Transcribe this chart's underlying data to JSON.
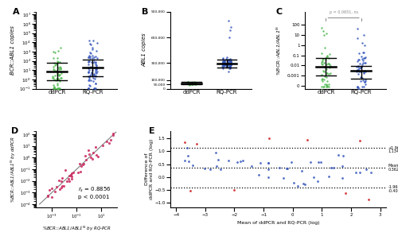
{
  "panel_A": {
    "ylabel": "BCR::ABL1 copies",
    "xticklabels": [
      "ddPCR",
      "RQ-PCR"
    ],
    "color_ddpcr": "#4db84d",
    "color_rqpcr": "#3355bb",
    "median_ddpcr": 7.0,
    "iqr_ddpcr_low": 0.8,
    "iqr_ddpcr_high": 60.0,
    "median_rqpcr": 18.0,
    "iqr_rqpcr_low": 2.0,
    "iqr_rqpcr_high": 130.0
  },
  "panel_B": {
    "ylabel": "ABL1 copies",
    "xticklabels": [
      "ddPCR",
      "RQ-PCR"
    ],
    "color_ddpcr": "#4db84d",
    "color_rqpcr": "#3355bb",
    "median_ddpcr": 62000,
    "iqr_ddpcr_low": 50000,
    "iqr_ddpcr_high": 78000,
    "median_rqpcr": 295000,
    "iqr_rqpcr_low": 245000,
    "iqr_rqpcr_high": 340000
  },
  "panel_C": {
    "ylabel": "%BCR::ABL1/ABL1IS",
    "xticklabels": [
      "ddPCR",
      "RQ-PCR"
    ],
    "color_ddpcr": "#4db84d",
    "color_rqpcr": "#3355bb",
    "median_ddpcr": 0.007,
    "iqr_ddpcr_low": 0.001,
    "iqr_ddpcr_high": 0.05,
    "median_rqpcr": 0.003,
    "iqr_rqpcr_low": 0.0005,
    "iqr_rqpcr_high": 0.008,
    "pval_text": "p = 0.0651, ns"
  },
  "panel_D": {
    "color": "#cc3366",
    "rs_text": "r_s = 0.8856",
    "p_text": "p < 0.0001",
    "xlabel": "%BCR::ABL1/ABL1IS by RQ-PCR",
    "ylabel": "%BCR::ABL1/ABL1IS by ddPCR"
  },
  "panel_E": {
    "xlabel": "Mean of ddPCR and RQ-PCR (log)",
    "ylabel": "Difference of\nddPCR and RQ-PCR (log)",
    "color_normal": "#3355bb",
    "color_outlier": "#cc2222",
    "bias": 0.3629,
    "upper_loa": 1.134,
    "lower_loa": -0.4078,
    "ylim": [
      -1.2,
      1.8
    ],
    "xlim": [
      -4.2,
      3.2
    ]
  }
}
